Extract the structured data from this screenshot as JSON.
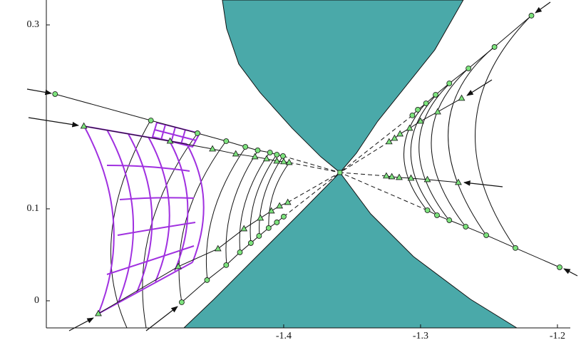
{
  "chart_data": {
    "type": "scatter",
    "xlim": [
      -1.5734,
      -1.1906
    ],
    "ylim": [
      -0.0295,
      0.3271
    ],
    "xticks": [
      -1.4,
      -1.3,
      -1.2
    ],
    "yticks": [
      0,
      0.1,
      0.3
    ],
    "series": [
      {
        "type": "region",
        "color": "#4aa9a9",
        "x": [
          -1.4448,
          -1.4417,
          -1.4328,
          -1.4172,
          -1.3938,
          -1.3729,
          -1.3589,
          -1.3469,
          -1.3313,
          -1.3104,
          -1.2896,
          -1.2688
        ],
        "y": [
          0.3271,
          0.2961,
          0.2574,
          0.2264,
          0.1876,
          0.1566,
          0.1395,
          0.1605,
          0.1953,
          0.2341,
          0.2729,
          0.3271
        ]
      },
      {
        "type": "region",
        "color": "#4aa9a9",
        "x": [
          -1.4729,
          -1.451,
          -1.4198,
          -1.3885,
          -1.3589,
          -1.3365,
          -1.3052,
          -1.2635,
          -1.2297
        ],
        "y": [
          -0.0295,
          0.0016,
          0.0481,
          0.0946,
          0.1395,
          0.0946,
          0.0481,
          0.0016,
          -0.0295
        ]
      },
      {
        "type": "points",
        "marker": "circle",
        "color": "#7de37d",
        "x": [
          -1.567,
          -1.497,
          -1.463,
          -1.442,
          -1.428,
          -1.419,
          -1.41,
          -1.405,
          -1.4005
        ],
        "y": [
          0.2248,
          0.1961,
          0.1822,
          0.1736,
          0.1674,
          0.1636,
          0.1612,
          0.1589,
          0.1574
        ]
      },
      {
        "type": "points",
        "marker": "triangle",
        "color": "#7de37d",
        "x": [
          -1.546,
          -1.483,
          -1.452,
          -1.435,
          -1.421,
          -1.4125,
          -1.405,
          -1.4,
          -1.396
        ],
        "y": [
          0.1899,
          0.1736,
          0.1651,
          0.1597,
          0.1566,
          0.1543,
          0.1519,
          0.1512,
          0.1504
        ]
      },
      {
        "type": "points",
        "marker": "triangle",
        "color": "#7de37d",
        "x": [
          -1.5354,
          -1.477,
          -1.448,
          -1.429,
          -1.417,
          -1.409,
          -1.403,
          -1.397
        ],
        "y": [
          -0.014,
          0.0372,
          0.0566,
          0.0783,
          0.0899,
          0.0977,
          0.1031,
          0.107
        ]
      },
      {
        "type": "points",
        "marker": "circle",
        "color": "#7de37d",
        "x": [
          -1.4745,
          -1.456,
          -1.442,
          -1.432,
          -1.424,
          -1.418,
          -1.411,
          -1.405,
          -1.4
        ],
        "y": [
          -0.0016,
          0.0225,
          0.0388,
          0.0527,
          0.0628,
          0.0705,
          0.0791,
          0.0853,
          0.0915
        ]
      },
      {
        "type": "points",
        "marker": "circle",
        "color": "#7de37d",
        "x": [
          -1.219,
          -1.246,
          -1.265,
          -1.279,
          -1.289,
          -1.296,
          -1.302,
          -1.306
        ],
        "y": [
          0.3101,
          0.276,
          0.2527,
          0.2364,
          0.224,
          0.2147,
          0.2078,
          0.2016
        ]
      },
      {
        "type": "points",
        "marker": "triangle",
        "color": "#7de37d",
        "x": [
          -1.27,
          -1.2875,
          -1.3,
          -1.308,
          -1.315,
          -1.319,
          -1.323
        ],
        "y": [
          0.2202,
          0.2054,
          0.1953,
          0.1876,
          0.1814,
          0.1767,
          0.1729
        ]
      },
      {
        "type": "points",
        "marker": "triangle",
        "color": "#7de37d",
        "x": [
          -1.2724,
          -1.295,
          -1.307,
          -1.3156,
          -1.321,
          -1.325
        ],
        "y": [
          0.1287,
          0.1318,
          0.1333,
          0.1341,
          0.1349,
          0.1357
        ]
      },
      {
        "type": "points",
        "marker": "circle",
        "color": "#7de37d",
        "x": [
          -1.1984,
          -1.2307,
          -1.252,
          -1.267,
          -1.279,
          -1.288,
          -1.295
        ],
        "y": [
          0.0364,
          0.0574,
          0.0713,
          0.0806,
          0.0876,
          0.093,
          0.0984
        ]
      },
      {
        "type": "points",
        "marker": "square",
        "color": "#7de37d",
        "x": [
          -1.3589
        ],
        "y": [
          0.1395
        ]
      }
    ]
  }
}
